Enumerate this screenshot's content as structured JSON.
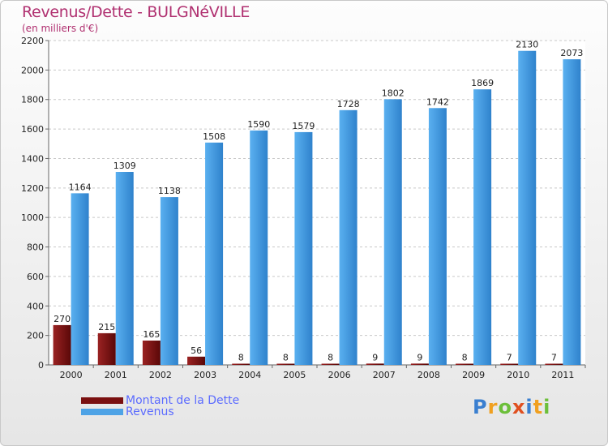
{
  "chart_data": {
    "type": "bar",
    "title": "Revenus/Dette - BULGNéVILLE",
    "subtitle": "(en milliers d'€)",
    "categories": [
      "2000",
      "2001",
      "2002",
      "2003",
      "2004",
      "2005",
      "2006",
      "2007",
      "2008",
      "2009",
      "2010",
      "2011"
    ],
    "series": [
      {
        "name": "Montant de la Dette",
        "color": "#7a1010",
        "values": [
          270,
          215,
          165,
          56,
          8,
          8,
          8,
          9,
          9,
          8,
          7,
          7
        ]
      },
      {
        "name": "Revenus",
        "color": "#4ea3e6",
        "values": [
          1164,
          1309,
          1138,
          1508,
          1590,
          1579,
          1728,
          1802,
          1742,
          1869,
          2130,
          2073
        ]
      }
    ],
    "ylim": [
      0,
      2200
    ],
    "yticks": [
      0,
      200,
      400,
      600,
      800,
      1000,
      1200,
      1400,
      1600,
      1800,
      2000,
      2200
    ],
    "grid": true,
    "legend_position": "bottom-left"
  },
  "logo": {
    "letters": [
      "P",
      "r",
      "o",
      "x",
      "i",
      "t",
      "i"
    ],
    "colors": [
      "#3a7fd0",
      "#f0a020",
      "#6cbf3a",
      "#e05020",
      "#3a7fd0",
      "#f0a020",
      "#6cbf3a"
    ]
  }
}
